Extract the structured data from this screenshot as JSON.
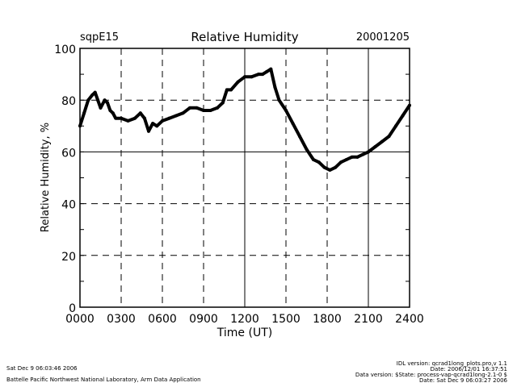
{
  "chart_data": {
    "type": "line",
    "title": "Relative Humidity",
    "left_label": "sqpE15",
    "right_label": "20001205",
    "xlabel": "Time (UT)",
    "ylabel": "Relative Humidity, %",
    "xlim": [
      0,
      24
    ],
    "ylim": [
      0,
      100
    ],
    "x_ticks": [
      {
        "v": 0,
        "l": "0000"
      },
      {
        "v": 3,
        "l": "0300"
      },
      {
        "v": 6,
        "l": "0600"
      },
      {
        "v": 9,
        "l": "0900"
      },
      {
        "v": 12,
        "l": "1200"
      },
      {
        "v": 15,
        "l": "1500"
      },
      {
        "v": 18,
        "l": "1800"
      },
      {
        "v": 21,
        "l": "2100"
      },
      {
        "v": 24,
        "l": "2400"
      }
    ],
    "y_ticks": [
      {
        "v": 0,
        "l": "0"
      },
      {
        "v": 20,
        "l": "20"
      },
      {
        "v": 40,
        "l": "40"
      },
      {
        "v": 60,
        "l": "60"
      },
      {
        "v": 80,
        "l": "80"
      },
      {
        "v": 100,
        "l": "100"
      }
    ],
    "grid": true,
    "series": [
      {
        "name": "Relative Humidity",
        "color": "#000000",
        "x": [
          0,
          0.3,
          0.6,
          0.9,
          1.1,
          1.3,
          1.5,
          1.8,
          2.0,
          2.2,
          2.4,
          2.6,
          3.0,
          3.5,
          4.0,
          4.4,
          4.7,
          5.0,
          5.3,
          5.6,
          6.0,
          6.5,
          7.0,
          7.5,
          8.0,
          8.5,
          9.0,
          9.5,
          10.0,
          10.4,
          10.7,
          11.0,
          11.5,
          12.0,
          12.5,
          13.0,
          13.3,
          13.6,
          13.9,
          14.2,
          14.5,
          15.0,
          15.5,
          16.0,
          16.5,
          17.0,
          17.4,
          17.8,
          18.2,
          18.6,
          19.0,
          19.4,
          19.8,
          20.2,
          20.6,
          21.0,
          21.5,
          22.0,
          22.5,
          23.0,
          23.5,
          24.0
        ],
        "y": [
          70,
          75,
          80,
          82,
          83,
          80,
          77,
          80,
          79,
          76,
          75,
          73,
          73,
          72,
          73,
          75,
          73,
          68,
          71,
          70,
          72,
          73,
          74,
          75,
          77,
          77,
          76,
          76,
          77,
          79,
          84,
          84,
          87,
          89,
          89,
          90,
          90,
          91,
          92,
          85,
          80,
          76,
          71,
          66,
          61,
          57,
          56,
          54,
          53,
          54,
          56,
          57,
          58,
          58,
          59,
          60,
          62,
          64,
          66,
          70,
          74,
          78
        ]
      }
    ]
  },
  "footer": {
    "date_left": "Sat Dec  9 06:03:46 2006",
    "org": "Battelle Pacific Northwest National Laboratory, Arm Data Application",
    "idl": "IDL version: qcrad1long_plots.pro,v 1.1",
    "idl_date": "Date: 2006/12/01 16:37:51",
    "data_version": "Data version: $State: process-vap-qcrad1long-2.1-0 $",
    "data_date": "Date: Sat Dec  9 06:03:27 2006"
  }
}
